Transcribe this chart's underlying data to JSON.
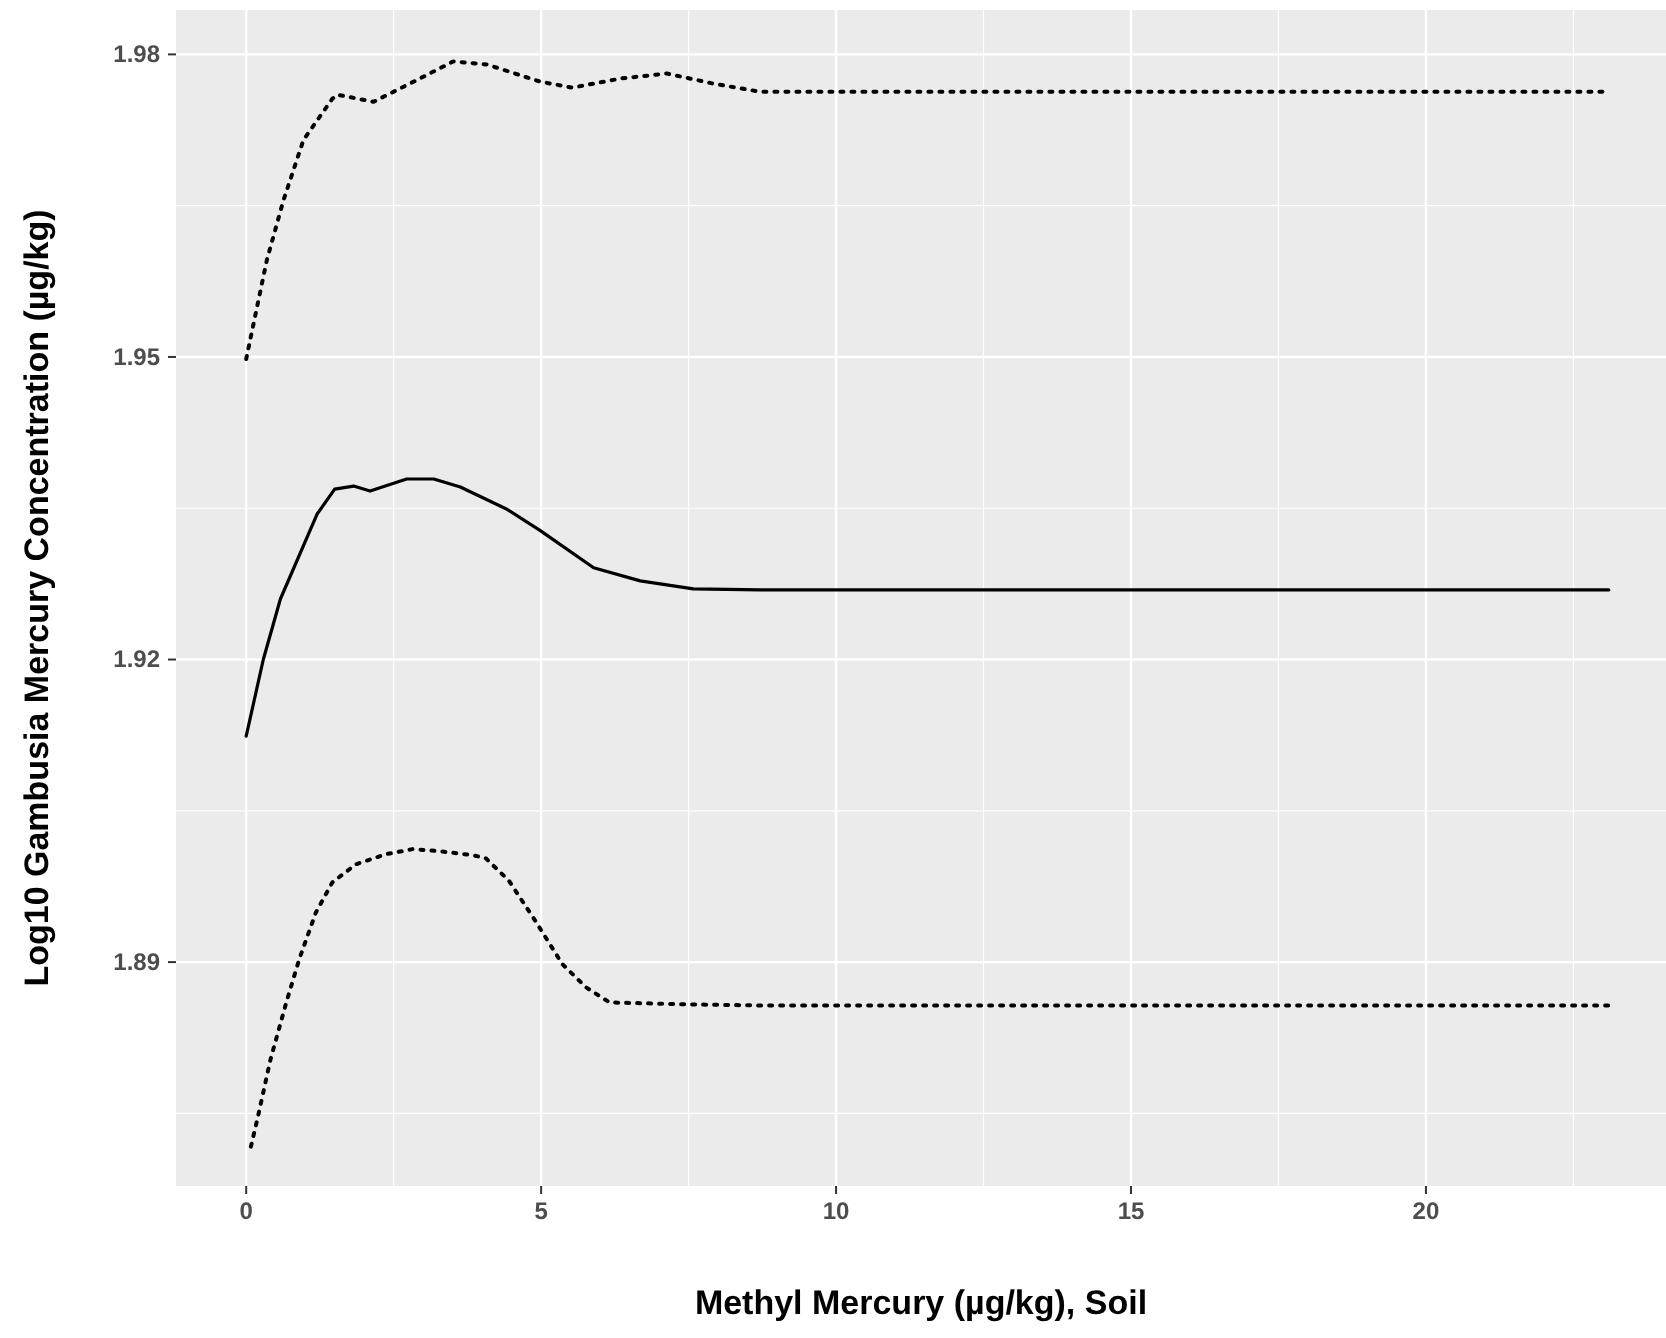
{
  "chart_data": {
    "type": "line",
    "xlabel": "Methyl Mercury (µg/kg), Soil",
    "ylabel": "Log10 Gambusia Mercury Concentration (µg/kg)",
    "xlim": [
      -1.19,
      24.07
    ],
    "xticks": [
      0,
      5,
      10,
      15,
      20
    ],
    "ylim": [
      1.8678,
      1.9844
    ],
    "yticks": [
      1.89,
      1.92,
      1.95,
      1.98
    ],
    "grid": true,
    "series": [
      {
        "color": "#000000",
        "line_style": "dotted",
        "x": [
          0,
          0.35,
          0.63,
          0.97,
          1.46,
          1.55,
          2.16,
          2.84,
          3.51,
          4.08,
          4.98,
          5.53,
          6.34,
          7.13,
          7.92,
          8.71,
          23.1
        ],
        "values": [
          1.9498,
          1.9596,
          1.9655,
          1.9715,
          1.9756,
          1.976,
          1.9753,
          1.9773,
          1.9793,
          1.979,
          1.9773,
          1.9767,
          1.9776,
          1.9781,
          1.9771,
          1.9763,
          1.9763
        ]
      },
      {
        "color": "#000000",
        "line_style": "solid",
        "x": [
          0,
          0.29,
          0.58,
          1.2,
          1.5,
          1.82,
          2.1,
          2.72,
          3.18,
          3.63,
          4.42,
          4.98,
          5.89,
          6.68,
          7.58,
          8.71,
          23.1
        ],
        "values": [
          1.9124,
          1.92,
          1.926,
          1.9344,
          1.9369,
          1.9372,
          1.9367,
          1.9379,
          1.9379,
          1.9371,
          1.9349,
          1.9328,
          1.9291,
          1.9278,
          1.927,
          1.9269,
          1.9269
        ]
      },
      {
        "color": "#000000",
        "line_style": "dotted",
        "x": [
          0.08,
          0.2,
          0.41,
          0.68,
          0.9,
          1.18,
          1.46,
          1.86,
          2.37,
          2.82,
          3.27,
          3.84,
          4.06,
          4.45,
          4.9,
          5.36,
          5.76,
          6.16,
          7.58,
          8.71,
          23.1
        ],
        "values": [
          1.8717,
          1.8747,
          1.8803,
          1.886,
          1.8903,
          1.8949,
          1.8979,
          1.8997,
          1.9007,
          1.9012,
          1.901,
          1.9006,
          1.9003,
          1.8981,
          1.8941,
          1.8898,
          1.8875,
          1.886,
          1.8858,
          1.8857,
          1.8857
        ]
      }
    ]
  }
}
